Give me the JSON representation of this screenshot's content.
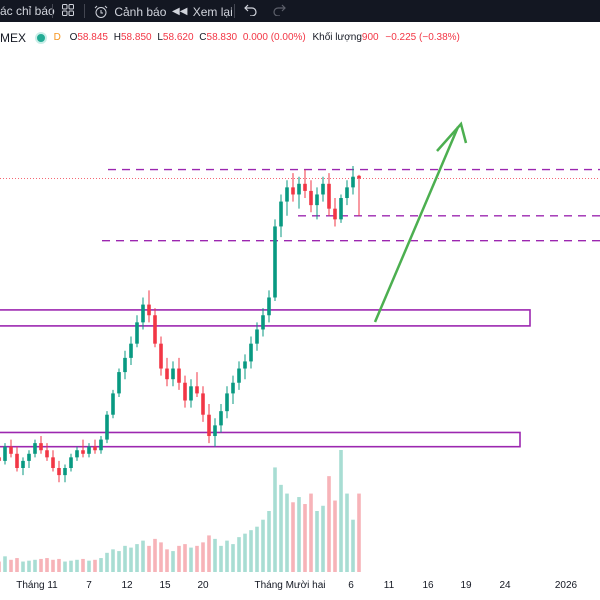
{
  "toolbar": {
    "indicators_label": "ác chỉ báo",
    "alert_label": "Cảnh báo",
    "replay_label": "Xem lại"
  },
  "legend": {
    "symbol": "MEX",
    "dot_label": "D",
    "o_label": "O",
    "o_value": "58.845",
    "h_label": "H",
    "h_value": "58.850",
    "l_label": "L",
    "l_value": "58.620",
    "c_label": "C",
    "c_value": "58.830",
    "change": "0.000 (0.00%)",
    "volume_label": "Khối lượng",
    "volume_value": "900",
    "volume_change": "−0.225 (−0.38%)"
  },
  "colors": {
    "up": "#089981",
    "down": "#f23645",
    "up_volume": "#a8ddd3",
    "down_volume": "#f7b3b8",
    "zone_border": "#9c27b0",
    "dashed": "#9c27b0",
    "arrow": "#4caf50",
    "last_price_line": "#f23645"
  },
  "chart_data": {
    "type": "candlestick",
    "title": "",
    "x_tick_labels": [
      "Tháng 11",
      "7",
      "12",
      "15",
      "20",
      "Tháng Mười hai",
      "6",
      "11",
      "16",
      "19",
      "24",
      "2026"
    ],
    "y_axis_labels_shown": false,
    "price_range_approx": [
      57.2,
      59.3
    ],
    "candles_ohlc_approx": [
      [
        57.26,
        57.3,
        57.2,
        57.24
      ],
      [
        57.24,
        57.34,
        57.22,
        57.32
      ],
      [
        57.32,
        57.36,
        57.26,
        57.28
      ],
      [
        57.28,
        57.32,
        57.18,
        57.2
      ],
      [
        57.2,
        57.26,
        57.16,
        57.24
      ],
      [
        57.24,
        57.3,
        57.2,
        57.28
      ],
      [
        57.28,
        57.36,
        57.26,
        57.34
      ],
      [
        57.34,
        57.38,
        57.28,
        57.3
      ],
      [
        57.3,
        57.34,
        57.24,
        57.26
      ],
      [
        57.26,
        57.3,
        57.18,
        57.2
      ],
      [
        57.2,
        57.24,
        57.12,
        57.16
      ],
      [
        57.16,
        57.22,
        57.12,
        57.2
      ],
      [
        57.2,
        57.28,
        57.18,
        57.26
      ],
      [
        57.26,
        57.32,
        57.24,
        57.3
      ],
      [
        57.3,
        57.36,
        57.26,
        57.28
      ],
      [
        57.28,
        57.34,
        57.26,
        57.32
      ],
      [
        57.32,
        57.36,
        57.28,
        57.3
      ],
      [
        57.3,
        57.38,
        57.28,
        57.36
      ],
      [
        57.36,
        57.52,
        57.34,
        57.5
      ],
      [
        57.5,
        57.64,
        57.48,
        57.62
      ],
      [
        57.62,
        57.76,
        57.6,
        57.74
      ],
      [
        57.74,
        57.86,
        57.7,
        57.82
      ],
      [
        57.82,
        57.94,
        57.78,
        57.9
      ],
      [
        57.9,
        58.06,
        57.88,
        58.02
      ],
      [
        58.02,
        58.16,
        57.98,
        58.12
      ],
      [
        58.12,
        58.2,
        58.02,
        58.06
      ],
      [
        58.06,
        58.1,
        57.88,
        57.9
      ],
      [
        57.9,
        57.94,
        57.72,
        57.76
      ],
      [
        57.76,
        57.82,
        57.66,
        57.7
      ],
      [
        57.7,
        57.8,
        57.66,
        57.76
      ],
      [
        57.76,
        57.82,
        57.64,
        57.68
      ],
      [
        57.68,
        57.72,
        57.54,
        57.58
      ],
      [
        57.58,
        57.7,
        57.54,
        57.66
      ],
      [
        57.66,
        57.74,
        57.6,
        57.62
      ],
      [
        57.62,
        57.66,
        57.46,
        57.5
      ],
      [
        57.5,
        57.56,
        57.34,
        57.38
      ],
      [
        57.38,
        57.48,
        57.32,
        57.44
      ],
      [
        57.44,
        57.56,
        57.4,
        57.52
      ],
      [
        57.52,
        57.66,
        57.48,
        57.62
      ],
      [
        57.62,
        57.72,
        57.56,
        57.68
      ],
      [
        57.68,
        57.8,
        57.64,
        57.76
      ],
      [
        57.76,
        57.84,
        57.7,
        57.8
      ],
      [
        57.8,
        57.94,
        57.76,
        57.9
      ],
      [
        57.9,
        58.02,
        57.86,
        57.98
      ],
      [
        57.98,
        58.1,
        57.94,
        58.06
      ],
      [
        58.06,
        58.2,
        58.02,
        58.16
      ],
      [
        58.16,
        58.6,
        58.14,
        58.56
      ],
      [
        58.56,
        58.74,
        58.5,
        58.7
      ],
      [
        58.7,
        58.82,
        58.62,
        58.78
      ],
      [
        58.78,
        58.86,
        58.7,
        58.74
      ],
      [
        58.74,
        58.84,
        58.66,
        58.8
      ],
      [
        58.8,
        58.88,
        58.72,
        58.76
      ],
      [
        58.76,
        58.82,
        58.64,
        58.68
      ],
      [
        58.68,
        58.78,
        58.6,
        58.74
      ],
      [
        58.74,
        58.84,
        58.7,
        58.8
      ],
      [
        58.8,
        58.86,
        58.62,
        58.66
      ],
      [
        58.66,
        58.72,
        58.56,
        58.6
      ],
      [
        58.6,
        58.74,
        58.58,
        58.72
      ],
      [
        58.72,
        58.82,
        58.68,
        58.78
      ],
      [
        58.78,
        58.9,
        58.74,
        58.84
      ],
      [
        58.845,
        58.85,
        58.62,
        58.83
      ]
    ],
    "volume_approx": [
      120,
      180,
      140,
      160,
      120,
      130,
      140,
      150,
      160,
      140,
      150,
      120,
      130,
      140,
      150,
      130,
      140,
      160,
      220,
      260,
      240,
      300,
      280,
      320,
      360,
      300,
      380,
      340,
      260,
      240,
      300,
      320,
      280,
      300,
      340,
      420,
      380,
      300,
      360,
      320,
      400,
      440,
      480,
      520,
      600,
      700,
      1200,
      1000,
      900,
      800,
      860,
      780,
      900,
      700,
      760,
      1100,
      820,
      1400,
      900,
      600,
      900
    ],
    "horizontal_dashed_levels_approx": [
      58.88,
      58.62,
      58.48
    ],
    "zones_approx": [
      {
        "from": 58.0,
        "to": 58.09
      },
      {
        "from": 57.32,
        "to": 57.4
      }
    ],
    "last_close": 58.83,
    "annotation": "green arrow projecting upward"
  }
}
